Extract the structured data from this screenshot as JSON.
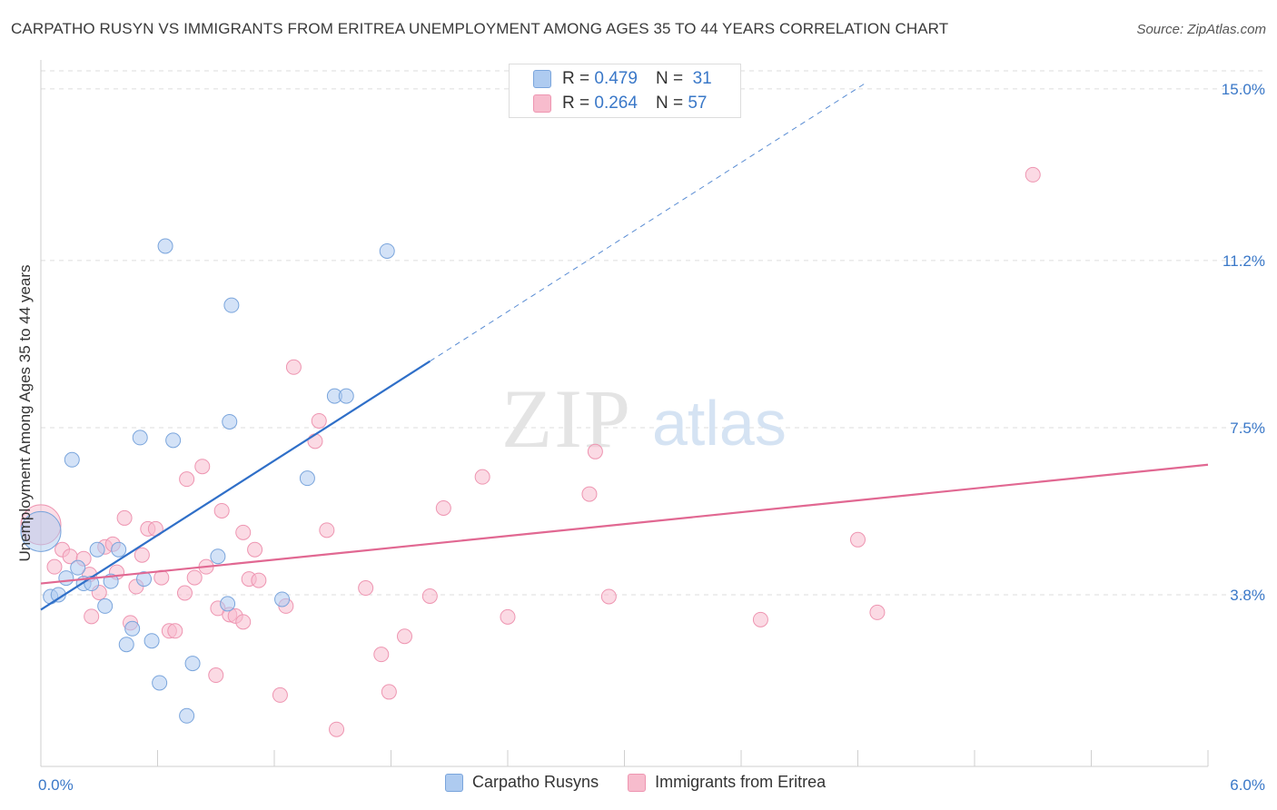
{
  "title": "CARPATHO RUSYN VS IMMIGRANTS FROM ERITREA UNEMPLOYMENT AMONG AGES 35 TO 44 YEARS CORRELATION CHART",
  "source": "Source: ZipAtlas.com",
  "watermark": {
    "zip": "ZIP",
    "atlas": "atlas"
  },
  "colors": {
    "blue_fill": "#aecbf0",
    "blue_stroke": "#7aa5dc",
    "blue_line": "#2f6fc8",
    "pink_fill": "#f7bccd",
    "pink_stroke": "#ee95b1",
    "pink_line": "#e16892",
    "tick_label": "#3a78c8",
    "grid": "#dddddd"
  },
  "legend": {
    "series": [
      {
        "r_label": "R =",
        "r_value": "0.479",
        "n_label": "N =",
        "n_value": "31"
      },
      {
        "r_label": "R =",
        "r_value": "0.264",
        "n_label": "N =",
        "n_value": "57"
      }
    ]
  },
  "bottom_legend": {
    "blue": "Carpatho Rusyns",
    "pink": "Immigrants from Eritrea"
  },
  "chart_data": {
    "type": "scatter",
    "title": "CARPATHO RUSYN VS IMMIGRANTS FROM ERITREA UNEMPLOYMENT AMONG AGES 35 TO 44 YEARS CORRELATION CHART",
    "xlabel": "",
    "ylabel": "Unemployment Among Ages 35 to 44 years",
    "xlim": [
      0,
      6.0
    ],
    "ylim": [
      0.0,
      15.4
    ],
    "x_tick_labels": [
      {
        "value": 0,
        "label": "0.0%"
      },
      {
        "value": 6.0,
        "label": "6.0%"
      }
    ],
    "y_ticks": [
      {
        "value": 3.8,
        "label": "3.8%"
      },
      {
        "value": 7.5,
        "label": "7.5%"
      },
      {
        "value": 11.2,
        "label": "11.2%"
      },
      {
        "value": 15.0,
        "label": "15.0%"
      }
    ],
    "series": [
      {
        "name": "Carpatho Rusyns",
        "color": "blue",
        "r": 0.479,
        "n": 31,
        "trend": {
          "x0": 0.0,
          "y0": 3.47,
          "x1": 2.0,
          "y1": 8.97,
          "dash_to_x": 4.25
        },
        "points": [
          {
            "x": 0.0,
            "y": 5.2,
            "big": true
          },
          {
            "x": 0.05,
            "y": 3.76
          },
          {
            "x": 0.09,
            "y": 3.8
          },
          {
            "x": 0.13,
            "y": 4.17
          },
          {
            "x": 0.16,
            "y": 6.79
          },
          {
            "x": 0.19,
            "y": 4.4
          },
          {
            "x": 0.22,
            "y": 4.05
          },
          {
            "x": 0.26,
            "y": 4.05
          },
          {
            "x": 0.29,
            "y": 4.8
          },
          {
            "x": 0.33,
            "y": 3.55
          },
          {
            "x": 0.36,
            "y": 4.1
          },
          {
            "x": 0.4,
            "y": 4.8
          },
          {
            "x": 0.44,
            "y": 2.7
          },
          {
            "x": 0.47,
            "y": 3.05
          },
          {
            "x": 0.51,
            "y": 7.28
          },
          {
            "x": 0.53,
            "y": 4.15
          },
          {
            "x": 0.57,
            "y": 2.78
          },
          {
            "x": 0.61,
            "y": 1.85
          },
          {
            "x": 0.64,
            "y": 11.52
          },
          {
            "x": 0.68,
            "y": 7.22
          },
          {
            "x": 0.75,
            "y": 1.12
          },
          {
            "x": 0.78,
            "y": 2.28
          },
          {
            "x": 0.91,
            "y": 4.65
          },
          {
            "x": 0.97,
            "y": 7.63
          },
          {
            "x": 0.96,
            "y": 3.6
          },
          {
            "x": 0.98,
            "y": 10.21
          },
          {
            "x": 1.24,
            "y": 3.7
          },
          {
            "x": 1.37,
            "y": 6.38
          },
          {
            "x": 1.51,
            "y": 8.2
          },
          {
            "x": 1.57,
            "y": 8.2
          },
          {
            "x": 1.78,
            "y": 11.41
          }
        ]
      },
      {
        "name": "Immigrants from Eritrea",
        "color": "pink",
        "r": 0.264,
        "n": 57,
        "trend": {
          "x0": 0.0,
          "y0": 4.05,
          "x1": 6.0,
          "y1": 6.68
        },
        "points": [
          {
            "x": 0.0,
            "y": 5.35,
            "big": true
          },
          {
            "x": 0.07,
            "y": 4.42
          },
          {
            "x": 0.11,
            "y": 4.8
          },
          {
            "x": 0.15,
            "y": 4.65
          },
          {
            "x": 0.22,
            "y": 4.6
          },
          {
            "x": 0.25,
            "y": 4.25
          },
          {
            "x": 0.26,
            "y": 3.32
          },
          {
            "x": 0.3,
            "y": 3.85
          },
          {
            "x": 0.33,
            "y": 4.86
          },
          {
            "x": 0.37,
            "y": 4.92
          },
          {
            "x": 0.39,
            "y": 4.3
          },
          {
            "x": 0.43,
            "y": 5.5
          },
          {
            "x": 0.46,
            "y": 3.18
          },
          {
            "x": 0.49,
            "y": 3.98
          },
          {
            "x": 0.52,
            "y": 4.68
          },
          {
            "x": 0.55,
            "y": 5.26
          },
          {
            "x": 0.59,
            "y": 5.26
          },
          {
            "x": 0.62,
            "y": 4.18
          },
          {
            "x": 0.66,
            "y": 3.0
          },
          {
            "x": 0.69,
            "y": 3.0
          },
          {
            "x": 0.74,
            "y": 3.84
          },
          {
            "x": 0.75,
            "y": 6.36
          },
          {
            "x": 0.79,
            "y": 4.18
          },
          {
            "x": 0.83,
            "y": 6.64
          },
          {
            "x": 0.85,
            "y": 4.42
          },
          {
            "x": 0.9,
            "y": 2.02
          },
          {
            "x": 0.91,
            "y": 3.5
          },
          {
            "x": 0.93,
            "y": 5.66
          },
          {
            "x": 0.97,
            "y": 3.36
          },
          {
            "x": 1.0,
            "y": 3.33
          },
          {
            "x": 1.04,
            "y": 3.2
          },
          {
            "x": 1.04,
            "y": 5.18
          },
          {
            "x": 1.07,
            "y": 4.15
          },
          {
            "x": 1.1,
            "y": 4.8
          },
          {
            "x": 1.12,
            "y": 4.12
          },
          {
            "x": 1.23,
            "y": 1.58
          },
          {
            "x": 1.26,
            "y": 3.55
          },
          {
            "x": 1.3,
            "y": 8.84
          },
          {
            "x": 1.43,
            "y": 7.65
          },
          {
            "x": 1.41,
            "y": 7.2
          },
          {
            "x": 1.47,
            "y": 5.23
          },
          {
            "x": 1.52,
            "y": 0.82
          },
          {
            "x": 1.67,
            "y": 3.95
          },
          {
            "x": 1.75,
            "y": 2.48
          },
          {
            "x": 1.79,
            "y": 1.65
          },
          {
            "x": 1.87,
            "y": 2.88
          },
          {
            "x": 2.0,
            "y": 3.77
          },
          {
            "x": 2.07,
            "y": 5.72
          },
          {
            "x": 2.27,
            "y": 6.41
          },
          {
            "x": 2.4,
            "y": 3.31
          },
          {
            "x": 2.82,
            "y": 6.03
          },
          {
            "x": 2.85,
            "y": 6.97
          },
          {
            "x": 2.92,
            "y": 3.76
          },
          {
            "x": 3.7,
            "y": 3.25
          },
          {
            "x": 4.2,
            "y": 5.02
          },
          {
            "x": 4.3,
            "y": 3.41
          },
          {
            "x": 5.1,
            "y": 13.1
          }
        ]
      }
    ]
  }
}
